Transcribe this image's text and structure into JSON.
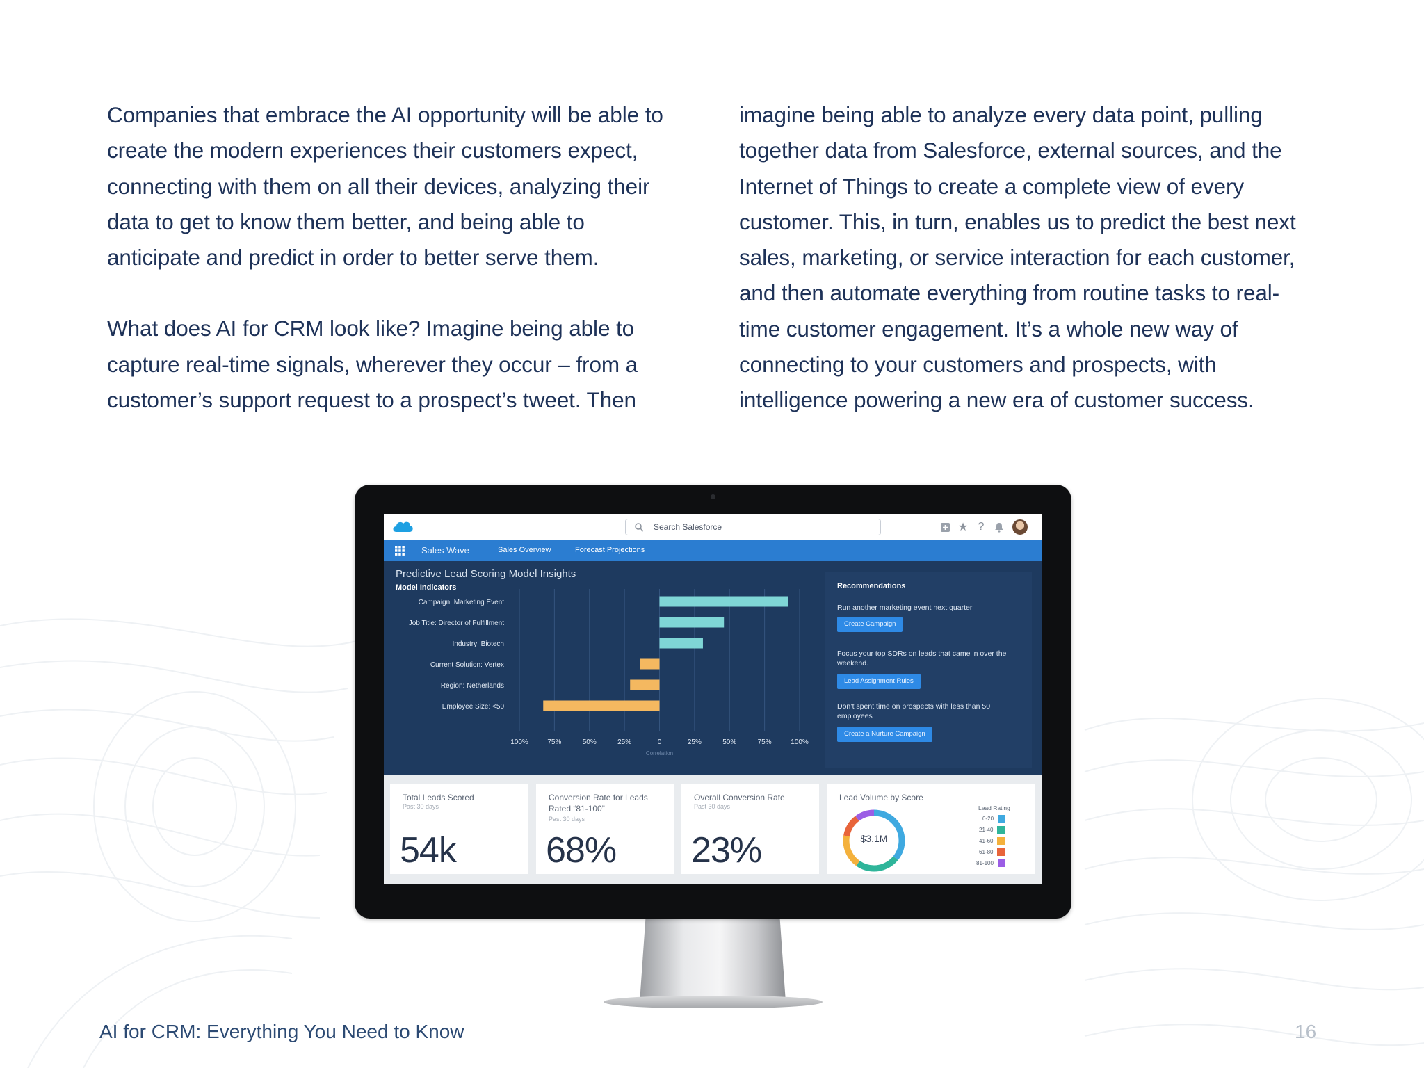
{
  "body": {
    "left_paragraph_1": "Companies that embrace the AI opportunity will be able to create the modern experiences their customers expect, connecting with them on all their devices, analyzing their data to get to know them better, and being able to anticipate and predict in order to better serve them.",
    "left_paragraph_2": "What does AI for CRM look like? Imagine being able to capture real-time signals, wherever they occur – from a customer’s support request to a prospect’s tweet. Then",
    "right_paragraph_1": "imagine being able to analyze every data point, pulling together data from Salesforce, external sources, and the Internet of Things to create a complete view of every customer. This, in turn, enables us to predict the best next sales, marketing, or service interaction for each customer, and then automate everything from routine tasks to real-time customer engagement. It’s a whole new way of connecting to your customers and prospects, with intelligence powering a new era of customer success."
  },
  "app": {
    "search_placeholder": "Search Salesforce",
    "app_name": "Sales Wave",
    "tabs": [
      "Sales Overview",
      "Forecast Projections"
    ],
    "header_icons": [
      "add-icon",
      "star-icon",
      "help-icon",
      "bell-icon"
    ]
  },
  "insights": {
    "title": "Predictive Lead Scoring Model Insights",
    "subtitle": "Model Indicators",
    "xlabel": "Correlation"
  },
  "chart_data": {
    "type": "bar",
    "orientation": "horizontal",
    "title": "",
    "xlabel": "Correlation",
    "ylabel": "",
    "categories": [
      "Campaign: Marketing Event",
      "Job Title: Director of Fulfillment",
      "Industry: Biotech",
      "Current Solution: Vertex",
      "Region: Netherlands",
      "Employee Size: <50"
    ],
    "values": [
      0.92,
      0.46,
      0.31,
      -0.14,
      -0.21,
      -0.83
    ],
    "xlim": [
      -1,
      1
    ],
    "xticks": [
      "100%",
      "75%",
      "50%",
      "25%",
      "0",
      "25%",
      "50%",
      "75%",
      "100%"
    ],
    "positive_color": "#7fd6d6",
    "negative_color": "#f4b860",
    "grid": true
  },
  "recommendations": {
    "title": "Recommendations",
    "items": [
      {
        "text": "Run another marketing event next quarter",
        "button": "Create Campaign"
      },
      {
        "text": "Focus your top SDRs on leads that came in over the weekend.",
        "button": "Lead Assignment Rules"
      },
      {
        "text": "Don’t spent time on prospects with less than 50 employees",
        "button": "Create a Nurture Campaign"
      }
    ]
  },
  "kpis": [
    {
      "title": "Total Leads Scored",
      "sub": "Past 30 days",
      "value": "54k"
    },
    {
      "title": "Conversion Rate for Leads Rated “81-100”",
      "sub": "Past 30 days",
      "value": "68%"
    },
    {
      "title": "Overall Conversion Rate",
      "sub": "Past 30 days",
      "value": "23%"
    }
  ],
  "lead_volume": {
    "title": "Lead Volume by Score",
    "center": "$3.1M",
    "legend_title": "Lead Rating",
    "legend": [
      {
        "label": "0-20",
        "color": "#3fa9e0"
      },
      {
        "label": "21-40",
        "color": "#2fb59a"
      },
      {
        "label": "41-60",
        "color": "#f4b13c"
      },
      {
        "label": "61-80",
        "color": "#e8643a"
      },
      {
        "label": "81-100",
        "color": "#9b5de5"
      }
    ]
  },
  "footer": {
    "title": "AI for CRM: Everything You Need to Know",
    "page": "16"
  }
}
